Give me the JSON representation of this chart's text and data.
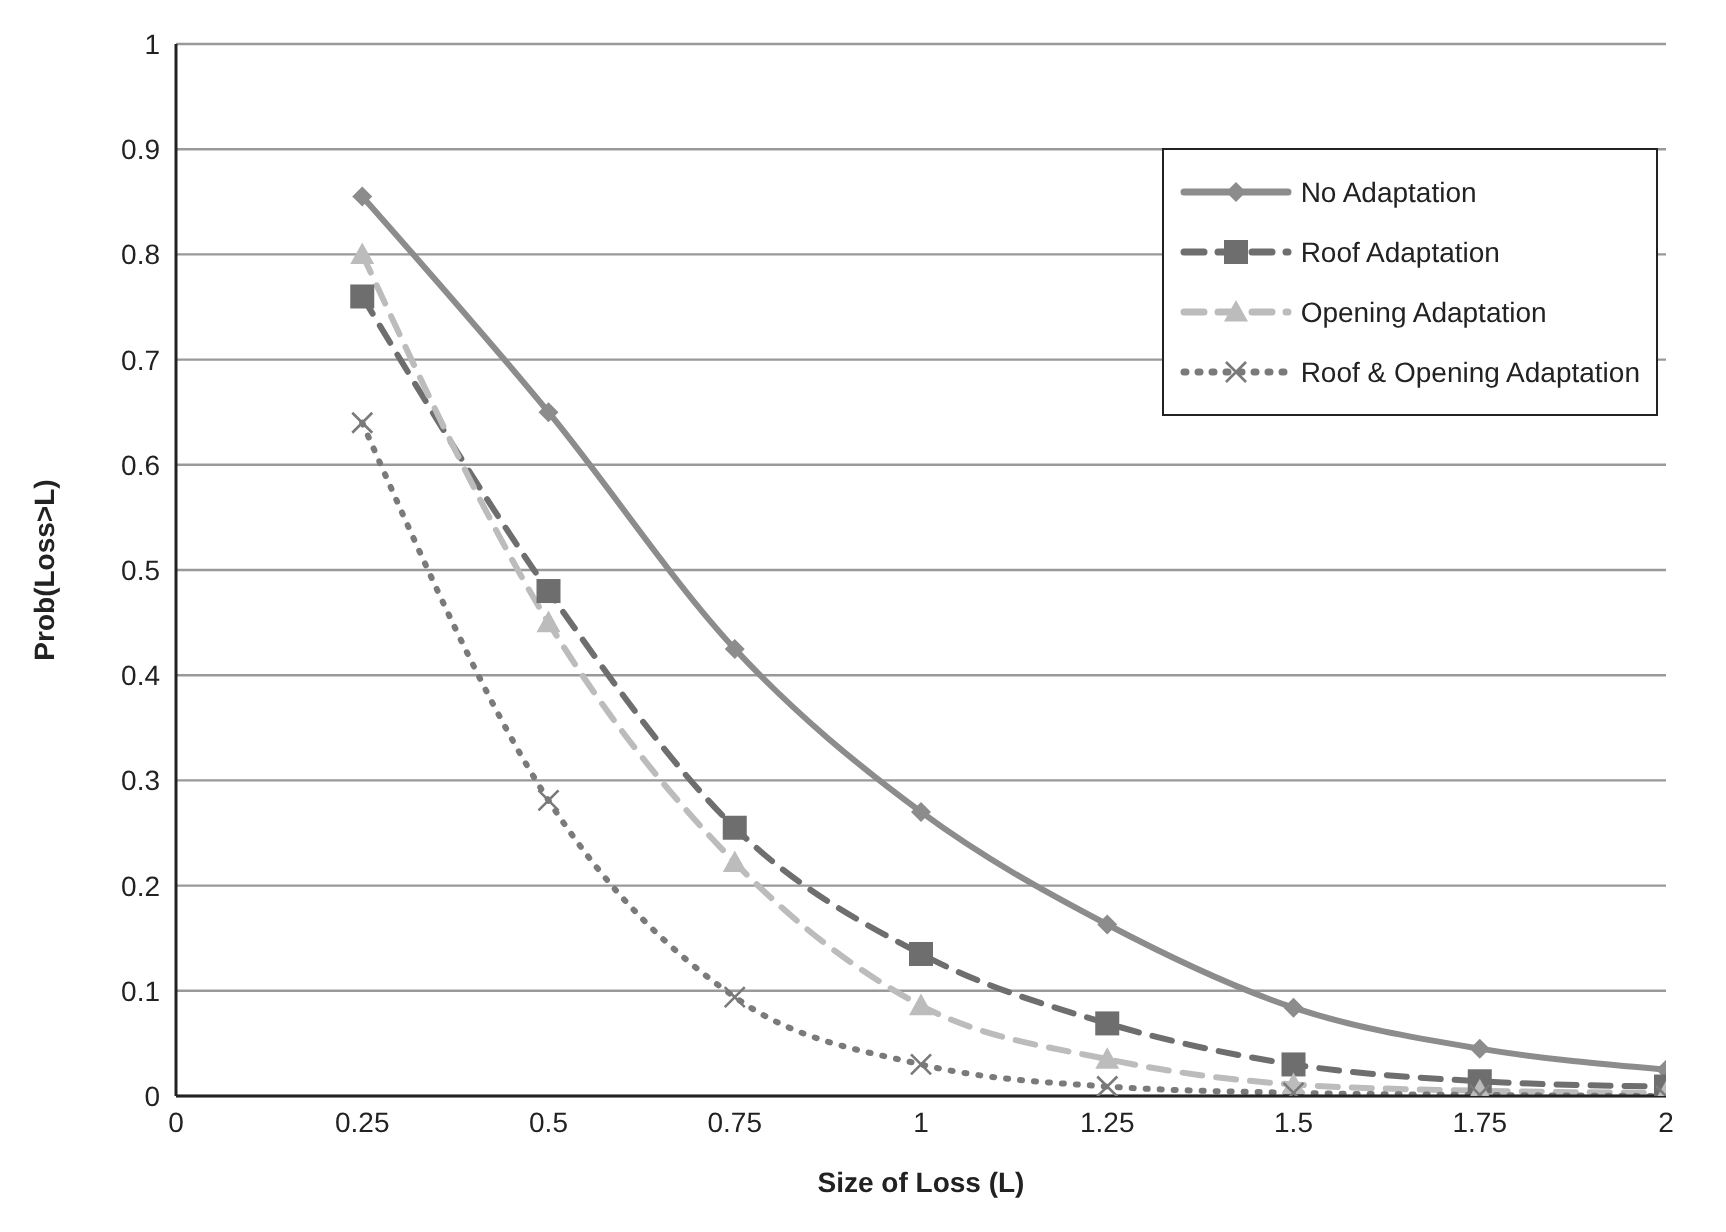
{
  "chart_data": {
    "type": "line",
    "xlabel": "Size of Loss (L)",
    "ylabel": "Prob(Loss>L)",
    "x": [
      0.25,
      0.5,
      0.75,
      1,
      1.25,
      1.5,
      1.75,
      2
    ],
    "xlim": [
      0,
      2
    ],
    "xticks": [
      0,
      0.25,
      0.5,
      0.75,
      1,
      1.25,
      1.5,
      1.75,
      2
    ],
    "ylim": [
      0,
      1
    ],
    "yticks": [
      0,
      0.1,
      0.2,
      0.3,
      0.4,
      0.5,
      0.6,
      0.7,
      0.8,
      0.9,
      1
    ],
    "grid": "y",
    "legend": "top right",
    "series": [
      {
        "name": "No Adaptation",
        "color": "#8c8c8c",
        "marker": "diamond",
        "line_style": "solid",
        "values": [
          0.855,
          0.65,
          0.425,
          0.27,
          0.163,
          0.084,
          0.045,
          0.025
        ]
      },
      {
        "name": "Roof Adaptation",
        "color": "#6e6e6e",
        "marker": "square",
        "line_style": "dashed",
        "values": [
          0.76,
          0.48,
          0.255,
          0.135,
          0.069,
          0.03,
          0.014,
          0.009
        ]
      },
      {
        "name": "Opening Adaptation",
        "color": "#bcbcbc",
        "marker": "triangle",
        "line_style": "dashed",
        "values": [
          0.8,
          0.45,
          0.222,
          0.086,
          0.035,
          0.011,
          0.005,
          0.003
        ]
      },
      {
        "name": "Roof & Opening Adaptation",
        "color": "#7a7a7a",
        "marker": "cross",
        "line_style": "dotted",
        "values": [
          0.64,
          0.281,
          0.094,
          0.03,
          0.009,
          0.003,
          0.001,
          0
        ]
      }
    ]
  }
}
